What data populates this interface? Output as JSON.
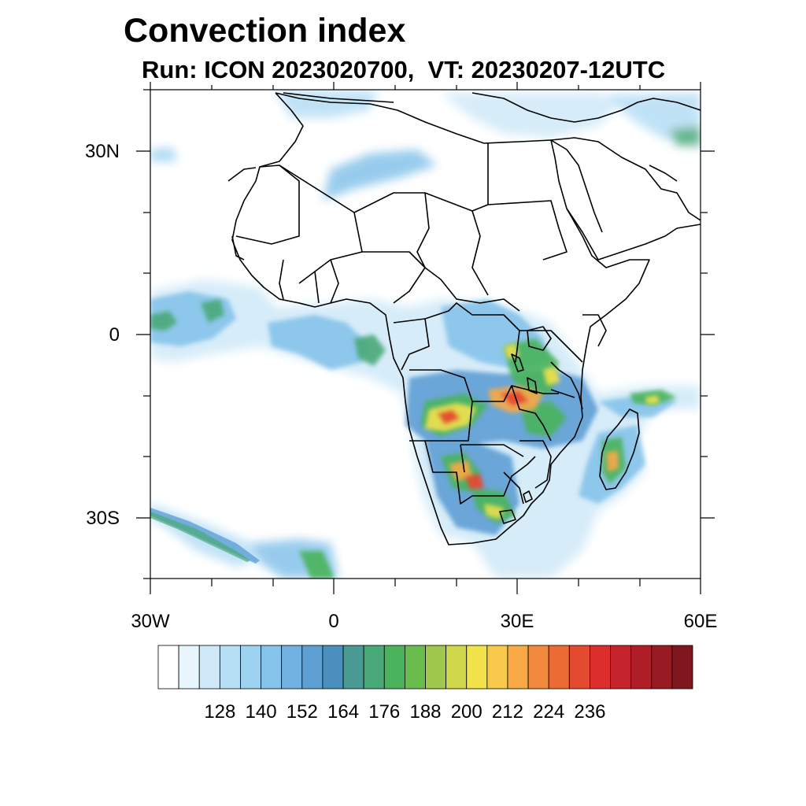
{
  "header": {
    "title": "Convection index",
    "subtitle": "Run: ICON 2023020700,  VT: 20230207-12UTC"
  },
  "map": {
    "region": "Africa",
    "lon_range": [
      -30,
      60
    ],
    "lat_range": [
      -40,
      40
    ],
    "lat_ticks": [
      {
        "value": 30,
        "label": "30N"
      },
      {
        "value": 0,
        "label": "0"
      },
      {
        "value": -30,
        "label": "30S"
      }
    ],
    "lon_ticks": [
      {
        "value": -30,
        "label": "30W"
      },
      {
        "value": 0,
        "label": "0"
      },
      {
        "value": 30,
        "label": "30E"
      },
      {
        "value": 60,
        "label": "60E"
      }
    ],
    "field_name": "Convection index"
  },
  "colorbar": {
    "tick_labels": [
      "128",
      "140",
      "152",
      "164",
      "176",
      "188",
      "200",
      "212",
      "224",
      "236"
    ],
    "colors": [
      "#ffffff",
      "#e8f5fc",
      "#cfe9f8",
      "#b6def5",
      "#9dd3f1",
      "#86c3ea",
      "#72b2e3",
      "#5e9fd4",
      "#4b8fbf",
      "#4a9a94",
      "#4aa978",
      "#4ab45c",
      "#6bbc4f",
      "#a0c84c",
      "#cfd84a",
      "#f2e24c",
      "#f8c94a",
      "#f8a845",
      "#f28a3d",
      "#ec6a34",
      "#e44a2f",
      "#dc2e2d",
      "#c6242c",
      "#b01e28",
      "#981a22",
      "#80161e"
    ]
  }
}
